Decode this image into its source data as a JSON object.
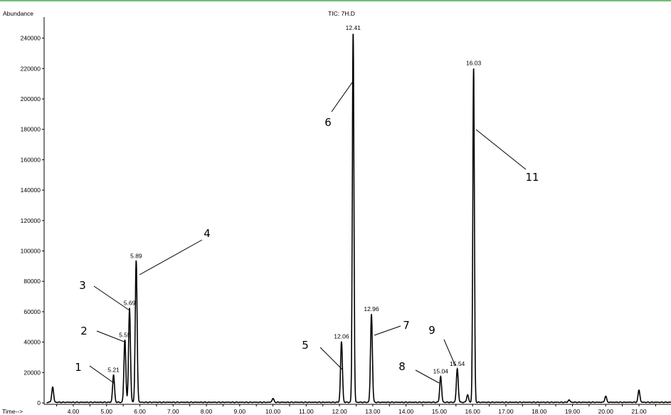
{
  "chart_data": {
    "type": "line",
    "title": "TIC: 7H.D",
    "ylabel": "Abundance",
    "xlabel": "Time-->",
    "xlim": [
      3.2,
      22.0
    ],
    "ylim": [
      0,
      250000
    ],
    "x_ticks": [
      "4.00",
      "5.00",
      "6.00",
      "7.00",
      "8.00",
      "9.00",
      "10.00",
      "11.00",
      "12.00",
      "13.00",
      "14.00",
      "15.00",
      "16.00",
      "17.00",
      "18.00",
      "19.00",
      "20.00",
      "21.00"
    ],
    "y_ticks": [
      "0",
      "20000",
      "40000",
      "60000",
      "80000",
      "100000",
      "120000",
      "140000",
      "160000",
      "180000",
      "200000",
      "220000",
      "240000"
    ],
    "peaks": [
      {
        "rt": 3.38,
        "abundance": 10000,
        "label": ""
      },
      {
        "rt": 5.21,
        "abundance": 18000,
        "label": "5.21"
      },
      {
        "rt": 5.55,
        "abundance": 41000,
        "label": "5.55"
      },
      {
        "rt": 5.69,
        "abundance": 62000,
        "label": "5.69"
      },
      {
        "rt": 5.89,
        "abundance": 93000,
        "label": "5.89"
      },
      {
        "rt": 10.0,
        "abundance": 2500,
        "label": ""
      },
      {
        "rt": 12.06,
        "abundance": 40000,
        "label": "12.06"
      },
      {
        "rt": 12.41,
        "abundance": 243000,
        "label": "12.41"
      },
      {
        "rt": 12.96,
        "abundance": 58000,
        "label": "12.96"
      },
      {
        "rt": 15.04,
        "abundance": 17000,
        "label": "15.04"
      },
      {
        "rt": 15.54,
        "abundance": 22000,
        "label": "15.54"
      },
      {
        "rt": 15.85,
        "abundance": 5000,
        "label": ""
      },
      {
        "rt": 16.03,
        "abundance": 220000,
        "label": "16.03"
      },
      {
        "rt": 18.9,
        "abundance": 1500,
        "label": ""
      },
      {
        "rt": 20.0,
        "abundance": 4000,
        "label": ""
      },
      {
        "rt": 21.0,
        "abundance": 8000,
        "label": ""
      }
    ],
    "annotations": [
      {
        "text": "1",
        "rt": 5.21
      },
      {
        "text": "2",
        "rt": 5.55
      },
      {
        "text": "3",
        "rt": 5.69
      },
      {
        "text": "4",
        "rt": 5.89
      },
      {
        "text": "5",
        "rt": 12.06
      },
      {
        "text": "6",
        "rt": 12.41
      },
      {
        "text": "7",
        "rt": 12.96
      },
      {
        "text": "8",
        "rt": 15.04
      },
      {
        "text": "9",
        "rt": 15.54
      },
      {
        "text": "11",
        "rt": 16.03
      }
    ]
  }
}
